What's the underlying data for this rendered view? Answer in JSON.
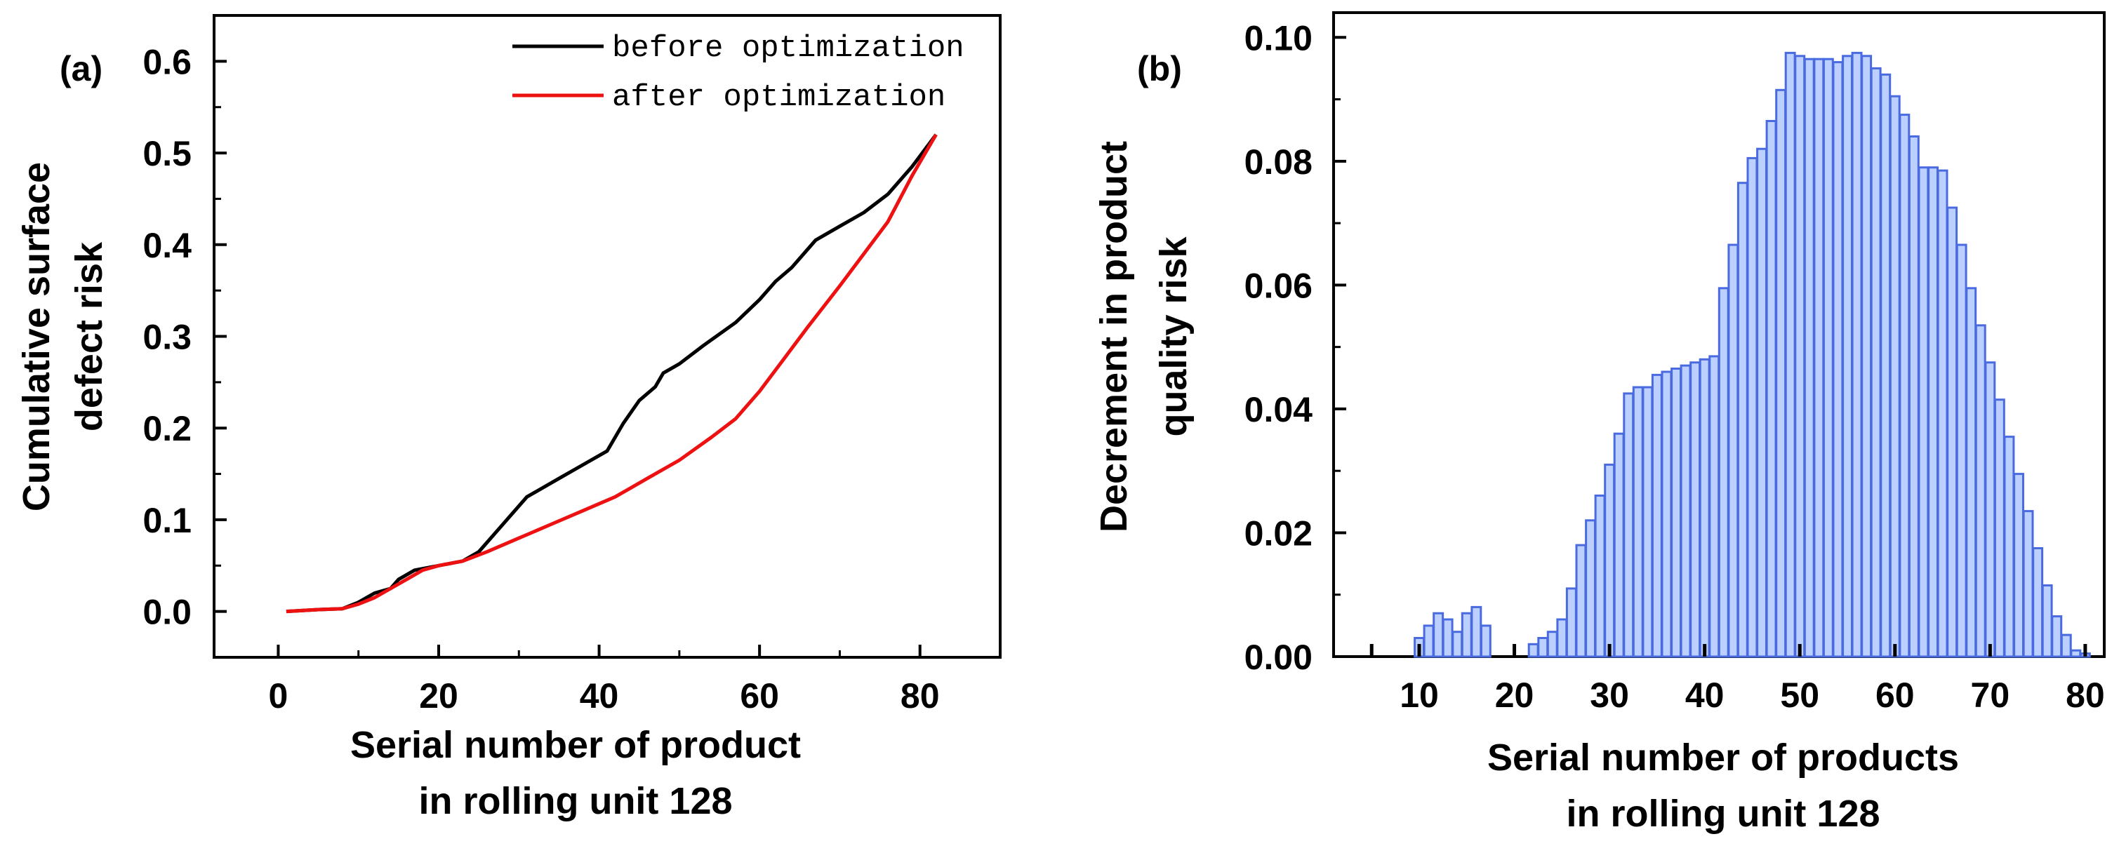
{
  "colors": {
    "before": "#000000",
    "after": "#ee1111",
    "bar_fill": "#bcd0ff",
    "bar_stroke": "#4a6ae0"
  },
  "chart_data": [
    {
      "type": "line",
      "panel_label": "(a)",
      "title": "",
      "xlabel": [
        "Serial number of product",
        "in rolling unit 128"
      ],
      "ylabel": [
        "Cumulative surface",
        "defect risk"
      ],
      "xlim": [
        -8,
        90
      ],
      "ylim": [
        -0.05,
        0.65
      ],
      "xticks": [
        0,
        20,
        40,
        60,
        80
      ],
      "xtick_labels": [
        "0",
        "20",
        "40",
        "60",
        "80"
      ],
      "yticks": [
        0.0,
        0.1,
        0.2,
        0.3,
        0.4,
        0.5,
        0.6
      ],
      "ytick_labels": [
        "0.0",
        "0.1",
        "0.2",
        "0.3",
        "0.4",
        "0.5",
        "0.6"
      ],
      "legend_position": "top-right",
      "series": [
        {
          "name": "before optimization",
          "color": "#000000",
          "x": [
            1,
            5,
            8,
            10,
            12,
            14,
            15,
            17,
            20,
            23,
            25,
            28,
            31,
            35,
            38,
            41,
            43,
            45,
            47,
            48,
            50,
            53,
            57,
            60,
            62,
            64,
            67,
            70,
            73,
            76,
            79,
            82
          ],
          "y": [
            0.0,
            0.002,
            0.003,
            0.01,
            0.02,
            0.025,
            0.035,
            0.045,
            0.05,
            0.055,
            0.065,
            0.095,
            0.125,
            0.145,
            0.16,
            0.175,
            0.205,
            0.23,
            0.245,
            0.26,
            0.27,
            0.29,
            0.315,
            0.34,
            0.36,
            0.375,
            0.405,
            0.42,
            0.435,
            0.455,
            0.485,
            0.52
          ]
        },
        {
          "name": "after optimization",
          "color": "#ee1111",
          "x": [
            1,
            5,
            8,
            10,
            12,
            14,
            16,
            18,
            20,
            23,
            26,
            30,
            34,
            38,
            42,
            46,
            50,
            54,
            57,
            60,
            63,
            66,
            70,
            73,
            76,
            79,
            82
          ],
          "y": [
            0.0,
            0.002,
            0.003,
            0.008,
            0.015,
            0.025,
            0.035,
            0.045,
            0.05,
            0.055,
            0.065,
            0.08,
            0.095,
            0.11,
            0.125,
            0.145,
            0.165,
            0.19,
            0.21,
            0.24,
            0.275,
            0.31,
            0.355,
            0.39,
            0.425,
            0.475,
            0.52
          ]
        }
      ]
    },
    {
      "type": "bar",
      "panel_label": "(b)",
      "title": "",
      "xlabel": [
        "Serial number of products",
        "in rolling unit 128"
      ],
      "ylabel": [
        "Decrement  in product",
        "quality risk"
      ],
      "xlim": [
        1,
        82
      ],
      "ylim": [
        0,
        0.104
      ],
      "xticks": [
        10,
        20,
        30,
        40,
        50,
        60,
        70,
        80
      ],
      "xtick_labels": [
        "10",
        "20",
        "30",
        "40",
        "50",
        "60",
        "70",
        "80"
      ],
      "yticks": [
        0.0,
        0.02,
        0.04,
        0.06,
        0.08,
        0.1
      ],
      "ytick_labels": [
        "0.00",
        "0.02",
        "0.04",
        "0.06",
        "0.08",
        "0.10"
      ],
      "x": [
        10,
        11,
        12,
        13,
        14,
        15,
        16,
        17,
        18,
        19,
        20,
        21,
        22,
        23,
        24,
        25,
        26,
        27,
        28,
        29,
        30,
        31,
        32,
        33,
        34,
        35,
        36,
        37,
        38,
        39,
        40,
        41,
        42,
        43,
        44,
        45,
        46,
        47,
        48,
        49,
        50,
        51,
        52,
        53,
        54,
        55,
        56,
        57,
        58,
        59,
        60,
        61,
        62,
        63,
        64,
        65,
        66,
        67,
        68,
        69,
        70,
        71,
        72,
        73,
        74,
        75,
        76,
        77,
        78,
        79,
        80,
        81
      ],
      "values": [
        0.003,
        0.005,
        0.007,
        0.006,
        0.004,
        0.007,
        0.008,
        0.005,
        0.0,
        0.0,
        0.0,
        0.0,
        0.002,
        0.003,
        0.004,
        0.006,
        0.011,
        0.018,
        0.022,
        0.026,
        0.031,
        0.036,
        0.0425,
        0.0435,
        0.0435,
        0.0455,
        0.046,
        0.0465,
        0.047,
        0.0475,
        0.048,
        0.0485,
        0.0595,
        0.0665,
        0.0765,
        0.0805,
        0.082,
        0.0865,
        0.0915,
        0.0975,
        0.097,
        0.0965,
        0.0965,
        0.0965,
        0.096,
        0.097,
        0.0975,
        0.097,
        0.095,
        0.094,
        0.0905,
        0.0875,
        0.084,
        0.079,
        0.079,
        0.0785,
        0.0725,
        0.0665,
        0.0595,
        0.0535,
        0.0475,
        0.0415,
        0.0355,
        0.0295,
        0.0235,
        0.0175,
        0.0115,
        0.0065,
        0.0035,
        0.001,
        0.0005,
        0.0
      ]
    }
  ]
}
